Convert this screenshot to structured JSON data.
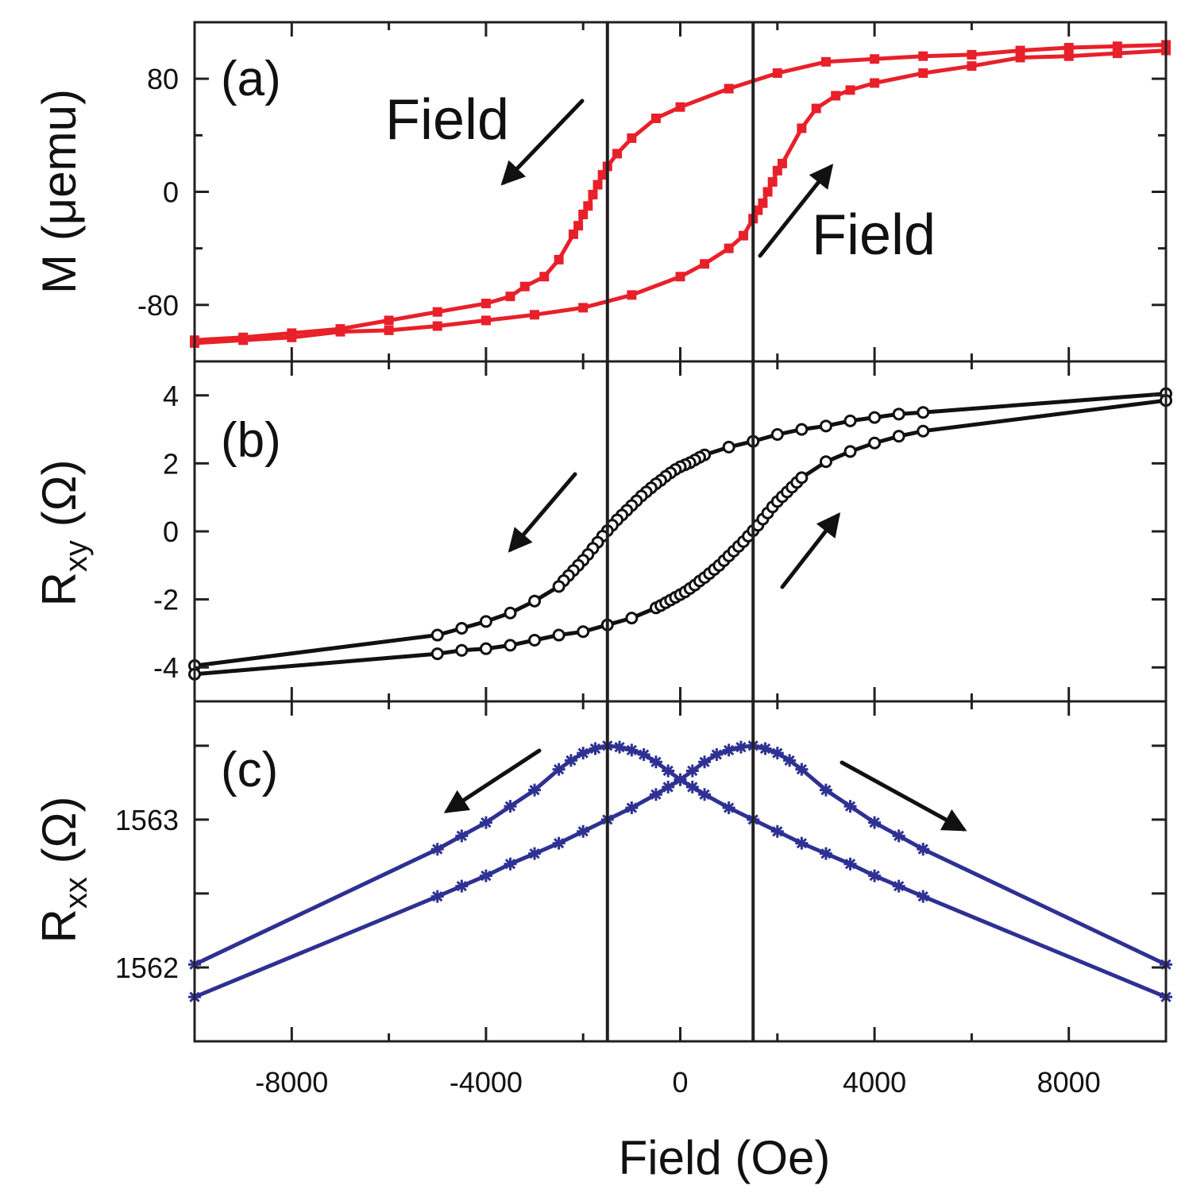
{
  "chart_data": {
    "type": "line",
    "xlabel": "Field (Oe)",
    "xlim": [
      -10000,
      10000
    ],
    "xticks": [
      -8000,
      -4000,
      0,
      4000,
      8000
    ],
    "xtick_labels": [
      "-8000",
      "-4000",
      "0",
      "4000",
      "8000"
    ],
    "vertical_lines": [
      -1500,
      1500
    ],
    "colors": {
      "a": "#e8202a",
      "b": "#111111",
      "c": "#2e3192",
      "axis": "#231f20"
    },
    "panels": [
      {
        "label": "(a)",
        "ylabel": "M (μemu)",
        "ylabel_main": "M (μemu)",
        "ylim": [
          -120,
          120
        ],
        "yticks": [
          -80,
          0,
          80
        ],
        "ytick_labels": [
          "-80",
          "0",
          "80"
        ],
        "marker": "filled-square",
        "annotations": [
          "Field",
          "Field"
        ],
        "series": [
          {
            "name": "field decreasing",
            "x": [
              10000,
              9000,
              8000,
              7000,
              6000,
              5000,
              4000,
              3000,
              2000,
              1000,
              0,
              -500,
              -1000,
              -1300,
              -1500,
              -1600,
              -1700,
              -1800,
              -1900,
              -2000,
              -2100,
              -2200,
              -2500,
              -2800,
              -3200,
              -3500,
              -4000,
              -5000,
              -6000,
              -7000,
              -8000,
              -9000,
              -10000
            ],
            "y": [
              104,
              103,
              102,
              100,
              97,
              96,
              94,
              92,
              84,
              73,
              60,
              52,
              38,
              27,
              18,
              12,
              5,
              -2,
              -10,
              -16,
              -24,
              -30,
              -48,
              -60,
              -67,
              -74,
              -79,
              -85,
              -91,
              -97,
              -100,
              -103,
              -105
            ]
          },
          {
            "name": "field increasing",
            "x": [
              -10000,
              -9000,
              -8000,
              -7000,
              -6000,
              -5000,
              -4000,
              -3000,
              -2000,
              -1000,
              0,
              500,
              1000,
              1300,
              1500,
              1600,
              1700,
              1800,
              1900,
              2000,
              2100,
              2500,
              2800,
              3200,
              3500,
              4000,
              5000,
              6000,
              7000,
              8000,
              9000,
              10000
            ],
            "y": [
              -107,
              -105,
              -103,
              -99,
              -98,
              -95,
              -91,
              -87,
              -82,
              -73,
              -60,
              -51,
              -40,
              -31,
              -19,
              -13,
              -8,
              0,
              7,
              15,
              20,
              45,
              59,
              68,
              72,
              77,
              84,
              89,
              95,
              96,
              98,
              100
            ]
          }
        ]
      },
      {
        "label": "(b)",
        "ylabel_main": "R",
        "ylabel_sub": "xy",
        "ylabel_unit": " (Ω)",
        "ylim": [
          -5,
          5
        ],
        "yticks": [
          -4,
          -2,
          0,
          2,
          4
        ],
        "ytick_labels": [
          "-4",
          "-2",
          "0",
          "2",
          "4"
        ],
        "marker": "open-circle",
        "series": [
          {
            "name": "field decreasing",
            "x": [
              10000,
              5000,
              4500,
              4000,
              3500,
              3000,
              2500,
              2000,
              1500,
              1000,
              500,
              400,
              300,
              200,
              100,
              0,
              -100,
              -200,
              -300,
              -400,
              -500,
              -600,
              -700,
              -800,
              -900,
              -1000,
              -1100,
              -1200,
              -1300,
              -1400,
              -1500,
              -1600,
              -1700,
              -1800,
              -1900,
              -2000,
              -2100,
              -2200,
              -2300,
              -2400,
              -2500,
              -3000,
              -3500,
              -4000,
              -4500,
              -5000,
              -10000
            ],
            "y": [
              4.05,
              3.5,
              3.45,
              3.35,
              3.25,
              3.1,
              3.0,
              2.85,
              2.65,
              2.48,
              2.25,
              2.18,
              2.1,
              2.02,
              1.96,
              1.9,
              1.82,
              1.72,
              1.62,
              1.5,
              1.4,
              1.28,
              1.16,
              1.04,
              0.9,
              0.76,
              0.62,
              0.48,
              0.34,
              0.18,
              0.02,
              -0.14,
              -0.32,
              -0.5,
              -0.68,
              -0.85,
              -1.0,
              -1.15,
              -1.3,
              -1.45,
              -1.62,
              -2.05,
              -2.4,
              -2.65,
              -2.85,
              -3.05,
              -3.95
            ]
          },
          {
            "name": "field increasing",
            "x": [
              -10000,
              -5000,
              -4500,
              -4000,
              -3500,
              -3000,
              -2500,
              -2000,
              -1500,
              -1000,
              -500,
              -400,
              -300,
              -200,
              -100,
              0,
              100,
              200,
              300,
              400,
              500,
              600,
              700,
              800,
              900,
              1000,
              1100,
              1200,
              1300,
              1400,
              1500,
              1600,
              1700,
              1800,
              1900,
              2000,
              2100,
              2200,
              2300,
              2400,
              2500,
              3000,
              3500,
              4000,
              4500,
              5000,
              10000
            ],
            "y": [
              -4.2,
              -3.6,
              -3.5,
              -3.45,
              -3.35,
              -3.2,
              -3.05,
              -2.95,
              -2.75,
              -2.55,
              -2.25,
              -2.18,
              -2.1,
              -2.02,
              -1.94,
              -1.86,
              -1.78,
              -1.68,
              -1.58,
              -1.46,
              -1.36,
              -1.24,
              -1.12,
              -1.0,
              -0.86,
              -0.72,
              -0.58,
              -0.44,
              -0.3,
              -0.14,
              0.02,
              0.18,
              0.36,
              0.54,
              0.72,
              0.88,
              1.02,
              1.16,
              1.3,
              1.44,
              1.58,
              2.05,
              2.35,
              2.6,
              2.8,
              2.95,
              3.85
            ]
          }
        ]
      },
      {
        "label": "(c)",
        "ylabel_main": "R",
        "ylabel_sub": "xx",
        "ylabel_unit": " (Ω)",
        "ylim": [
          1561.5,
          1563.8
        ],
        "yticks": [
          1562,
          1562.5,
          1563,
          1563.5
        ],
        "ytick_labels": [
          "1562",
          "",
          "1563",
          ""
        ],
        "marker": "asterisk",
        "series": [
          {
            "name": "field decreasing",
            "x": [
              10000,
              5000,
              4500,
              4000,
              3500,
              3000,
              2500,
              2000,
              1500,
              1000,
              500,
              250,
              0,
              -250,
              -500,
              -750,
              -1000,
              -1250,
              -1500,
              -1750,
              -2000,
              -2250,
              -2500,
              -3000,
              -3500,
              -4000,
              -4500,
              -5000,
              -10000
            ],
            "y": [
              1561.8,
              1562.48,
              1562.55,
              1562.62,
              1562.7,
              1562.77,
              1562.84,
              1562.92,
              1563.0,
              1563.08,
              1563.17,
              1563.22,
              1563.27,
              1563.33,
              1563.39,
              1563.44,
              1563.47,
              1563.49,
              1563.5,
              1563.48,
              1563.45,
              1563.4,
              1563.34,
              1563.2,
              1563.09,
              1562.98,
              1562.89,
              1562.8,
              1562.02
            ]
          },
          {
            "name": "field increasing",
            "x": [
              -10000,
              -5000,
              -4500,
              -4000,
              -3500,
              -3000,
              -2500,
              -2000,
              -1500,
              -1000,
              -500,
              -250,
              0,
              250,
              500,
              750,
              1000,
              1250,
              1500,
              1750,
              2000,
              2250,
              2500,
              3000,
              3500,
              4000,
              4500,
              5000,
              10000
            ],
            "y": [
              1561.8,
              1562.48,
              1562.55,
              1562.62,
              1562.7,
              1562.77,
              1562.84,
              1562.92,
              1563.0,
              1563.08,
              1563.17,
              1563.22,
              1563.27,
              1563.33,
              1563.39,
              1563.44,
              1563.47,
              1563.49,
              1563.5,
              1563.48,
              1563.45,
              1563.4,
              1563.34,
              1563.2,
              1563.09,
              1562.98,
              1562.89,
              1562.8,
              1562.02
            ]
          }
        ]
      }
    ]
  }
}
